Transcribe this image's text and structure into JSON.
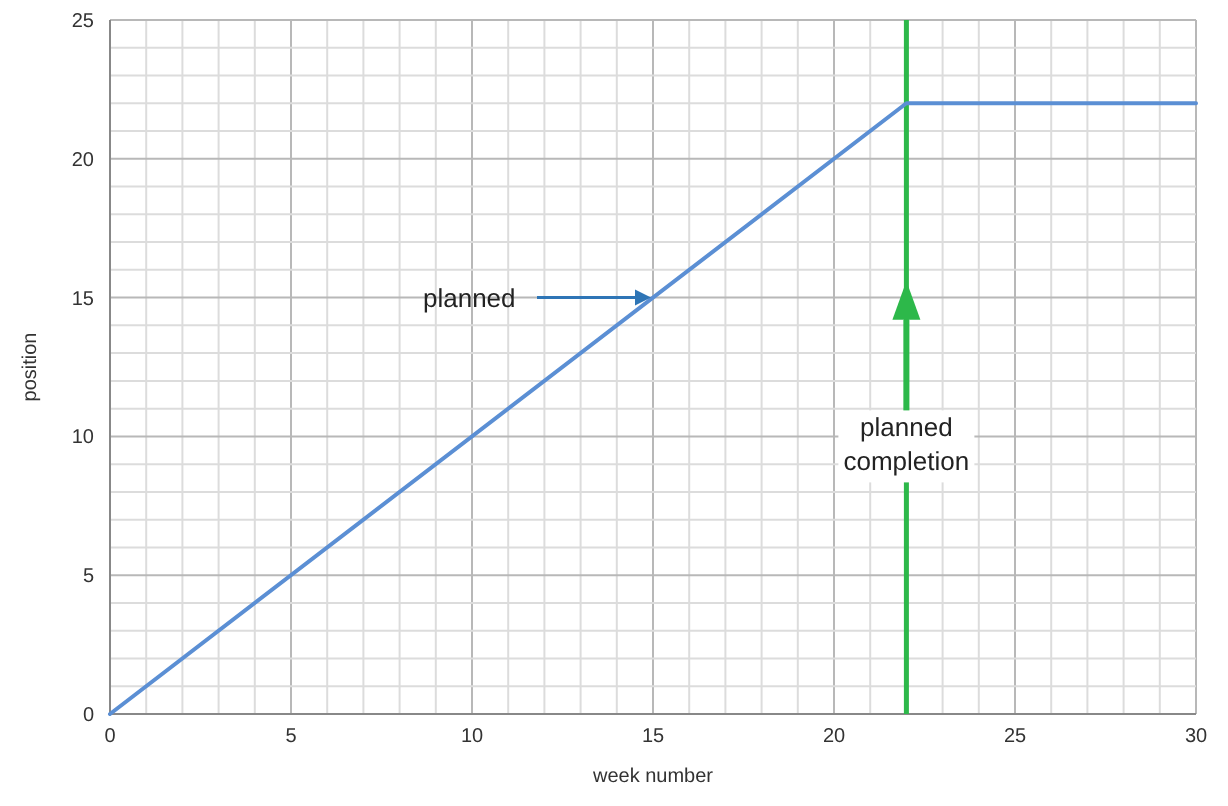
{
  "chart_data": {
    "type": "line",
    "xlabel": "week number",
    "ylabel": "position",
    "x": [
      0,
      22,
      30
    ],
    "series": [
      {
        "color": "#5b8fd4",
        "values": [
          0,
          22,
          22
        ]
      }
    ],
    "xlim": [
      0,
      30
    ],
    "ylim": [
      0,
      25
    ],
    "xticks": [
      0,
      {
        "value": 1,
        "label": null
      },
      {
        "value": 2,
        "label": null
      },
      {
        "value": 3,
        "label": null
      },
      {
        "value": 4,
        "label": null
      },
      5,
      {
        "value": 6,
        "label": null
      },
      {
        "value": 7,
        "label": null
      },
      {
        "value": 8,
        "label": null
      },
      {
        "value": 9,
        "label": null
      },
      10,
      {
        "value": 11,
        "label": null
      },
      {
        "value": 12,
        "label": null
      },
      {
        "value": 13,
        "label": null
      },
      {
        "value": 14,
        "label": null
      },
      15,
      {
        "value": 16,
        "label": null
      },
      {
        "value": 17,
        "label": null
      },
      {
        "value": 18,
        "label": null
      },
      {
        "value": 19,
        "label": null
      },
      20,
      {
        "value": 21,
        "label": null
      },
      {
        "value": 22,
        "label": null
      },
      {
        "value": 23,
        "label": null
      },
      {
        "value": 24,
        "label": null
      },
      25,
      {
        "value": 26,
        "label": null
      },
      {
        "value": 27,
        "label": null
      },
      {
        "value": 28,
        "label": null
      },
      {
        "value": 29,
        "label": null
      },
      30
    ],
    "yticks": [
      0,
      {
        "value": 1,
        "label": null
      },
      {
        "value": 2,
        "label": null
      },
      {
        "value": 3,
        "label": null
      },
      {
        "value": 4,
        "label": null
      },
      5,
      {
        "value": 6,
        "label": null
      },
      {
        "value": 7,
        "label": null
      },
      {
        "value": 8,
        "label": null
      },
      {
        "value": 9,
        "label": null
      },
      10,
      {
        "value": 11,
        "label": null
      },
      {
        "value": 12,
        "label": null
      },
      {
        "value": 13,
        "label": null
      },
      {
        "value": 14,
        "label": null
      },
      15,
      {
        "value": 16,
        "label": null
      },
      {
        "value": 17,
        "label": null
      },
      {
        "value": 18,
        "label": null
      },
      {
        "value": 19,
        "label": null
      },
      20,
      {
        "value": 21,
        "label": null
      },
      {
        "value": 22,
        "label": null
      },
      {
        "value": 23,
        "label": null
      },
      {
        "value": 24,
        "label": null
      },
      25
    ],
    "grid": true,
    "marker": "none",
    "line_style": "solid",
    "ref_lines": [
      {
        "axis": "x",
        "value": 22,
        "label": "planned completion",
        "color": "#2db84a"
      }
    ],
    "annotations": [
      {
        "text": "planned",
        "x": 15,
        "y": 15
      }
    ]
  }
}
